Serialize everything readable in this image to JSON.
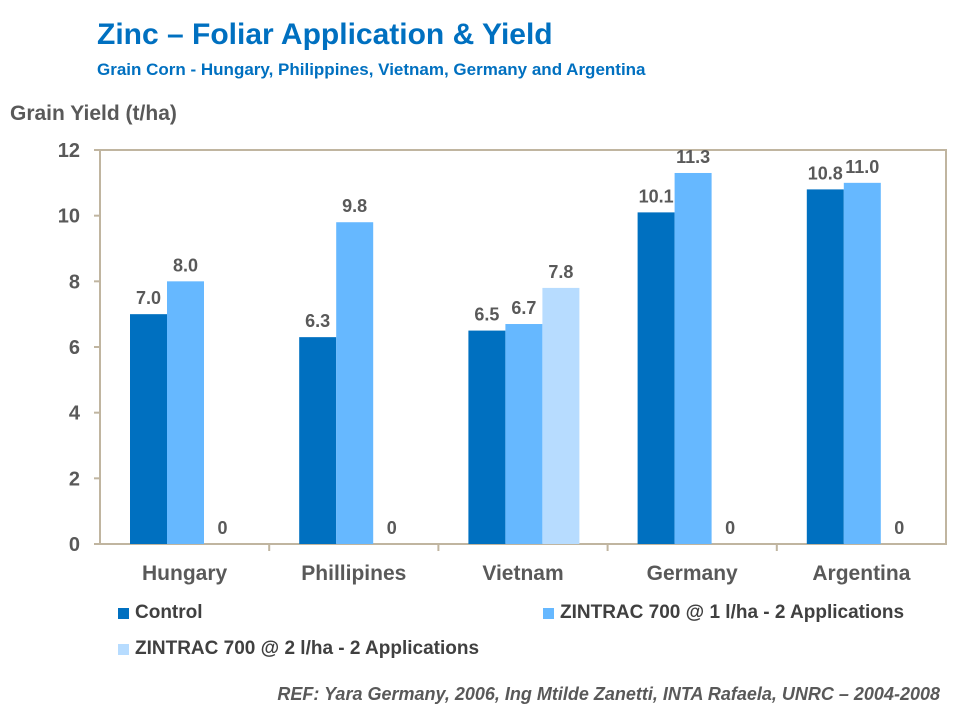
{
  "title": "Zinc – Foliar Application & Yield",
  "subtitle": "Grain Corn - Hungary, Philippines,  Vietnam, Germany and Argentina",
  "reference": "REF: Yara Germany, 2006, Ing Mtilde Zanetti, INTA Rafaela, UNRC – 2004-2008",
  "colors": {
    "control": "#0070c0",
    "zintrac1": "#66b8ff",
    "zintrac2": "#b7dcff",
    "frame": "#c0b5a0",
    "text": "#595959"
  },
  "chart_data": {
    "type": "bar",
    "ylabel": "Grain Yield (t/ha)",
    "xlabel": "",
    "ylim": [
      0,
      12
    ],
    "yticks": [
      0,
      2,
      4,
      6,
      8,
      10,
      12
    ],
    "grid": false,
    "legend_position": "bottom",
    "categories": [
      "Hungary",
      "Phillipines",
      "Vietnam",
      "Germany",
      "Argentina"
    ],
    "series": [
      {
        "name": "Control",
        "values": [
          7.0,
          6.3,
          6.5,
          10.1,
          10.8
        ],
        "labels": [
          "7.0",
          "6.3",
          "6.5",
          "10.1",
          "10.8"
        ]
      },
      {
        "name": "ZINTRAC 700 @ 1 l/ha - 2 Applications",
        "values": [
          8.0,
          9.8,
          6.7,
          11.3,
          11.0
        ],
        "labels": [
          "8.0",
          "9.8",
          "6.7",
          "11.3",
          "11.0"
        ]
      },
      {
        "name": "ZINTRAC 700 @ 2 l/ha - 2 Applications",
        "values": [
          0,
          0,
          7.8,
          0,
          0
        ],
        "labels": [
          "0",
          "0",
          "7.8",
          "0",
          "0"
        ]
      }
    ]
  }
}
